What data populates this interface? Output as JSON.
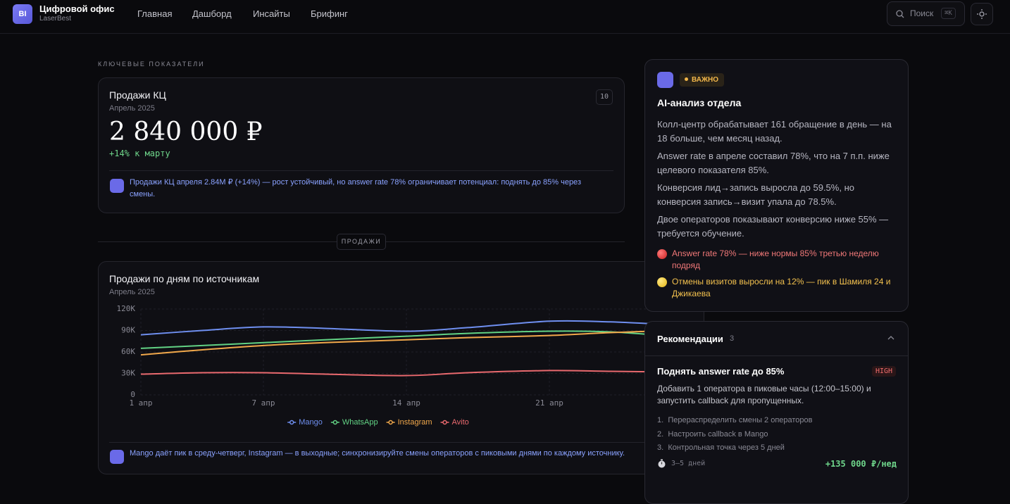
{
  "header": {
    "logo": "BI",
    "title": "Цифровой офис",
    "subtitle": "LaserBest",
    "nav": [
      "Главная",
      "Дашборд",
      "Инсайты",
      "Брифинг"
    ],
    "search": "Поиск",
    "shortcut": "⌘K"
  },
  "kpi": {
    "section": "КЛЮЧЕВЫЕ ПОКАЗАТЕЛИ",
    "title": "Продажи КЦ",
    "period": "Апрель 2025",
    "badge": "10",
    "value": "2 840 000 ₽",
    "change": "+14% к марту",
    "note": "Продажи КЦ апреля 2.84M ₽ (+14%) — рост устойчивый, но answer rate 78% ограничивает потенциал: поднять до 85% через смены."
  },
  "divider": "ПРОДАЖИ",
  "chart_data": {
    "type": "line",
    "title": "Продажи по дням по источникам",
    "subtitle": "Апрель 2025",
    "x": [
      1,
      4,
      7,
      10,
      14,
      17,
      21,
      24,
      27
    ],
    "xlim": [
      1,
      27
    ],
    "xticks": [
      {
        "value": 1,
        "label": "1 апр"
      },
      {
        "value": 7,
        "label": "7 апр"
      },
      {
        "value": 14,
        "label": "14 апр"
      },
      {
        "value": 21,
        "label": "21 апр"
      }
    ],
    "ylim": [
      0,
      120000
    ],
    "yticks": [
      0,
      {
        "value": 30000,
        "label": "30K"
      },
      {
        "value": 60000,
        "label": "60K"
      },
      {
        "value": 90000,
        "label": "90K"
      },
      {
        "value": 120000,
        "label": "120K"
      }
    ],
    "grid": true,
    "series": [
      {
        "name": "Mango",
        "color": "#6f8ff0",
        "values": [
          84000,
          90000,
          95000,
          93000,
          89000,
          94000,
          103000,
          102000,
          98000
        ]
      },
      {
        "name": "WhatsApp",
        "color": "#62d284",
        "values": [
          65000,
          69000,
          73000,
          77000,
          82000,
          86000,
          89000,
          88000,
          82000
        ]
      },
      {
        "name": "Instagram",
        "color": "#f1a84b",
        "values": [
          56000,
          63000,
          69000,
          73000,
          77000,
          80000,
          83000,
          87000,
          90000
        ]
      },
      {
        "name": "Avito",
        "color": "#e9696e",
        "values": [
          29000,
          31000,
          31000,
          29000,
          27000,
          31000,
          34000,
          33000,
          32000
        ]
      }
    ],
    "note": "Mango даёт пик в среду-четверг, Instagram — в выходные; синхронизируйте смены операторов с пиковыми днями по каждому источнику."
  },
  "ai_panel": {
    "tag": "ВАЖНО",
    "title": "AI-анализ отдела",
    "paragraphs": [
      "Колл-центр обрабатывает 161 обращение в день — на 18 больше, чем месяц назад.",
      "Answer rate в апреле составил 78%, что на 7 п.п. ниже целевого показателя 85%.",
      "Конверсия лид→запись выросла до 59.5%, но конверсия запись→визит упала до 78.5%.",
      "Двое операторов показывают конверсию ниже 55% — требуется обучение."
    ],
    "alerts": [
      {
        "level": "red",
        "text": "Answer rate 78% — ниже нормы 85% третью неделю подряд"
      },
      {
        "level": "yellow",
        "text": "Отмены визитов выросли на 12% — пик в Шамиля 24 и Джикаева"
      }
    ]
  },
  "recommendations": {
    "title": "Рекомендации",
    "count": "3",
    "items": [
      {
        "title": "Поднять answer rate до 85%",
        "priority": "HIGH",
        "text": "Добавить 1 оператора в пиковые часы (12:00–15:00) и запустить callback для пропущенных.",
        "steps": [
          {
            "n": "1.",
            "text": "Перераспределить смены 2 операторов"
          },
          {
            "n": "2.",
            "text": "Настроить callback в Mango"
          },
          {
            "n": "3.",
            "text": "Контрольная точка через 5 дней"
          }
        ],
        "duration": "3–5 дней",
        "effect": "+135 000 ₽/нед"
      }
    ]
  }
}
